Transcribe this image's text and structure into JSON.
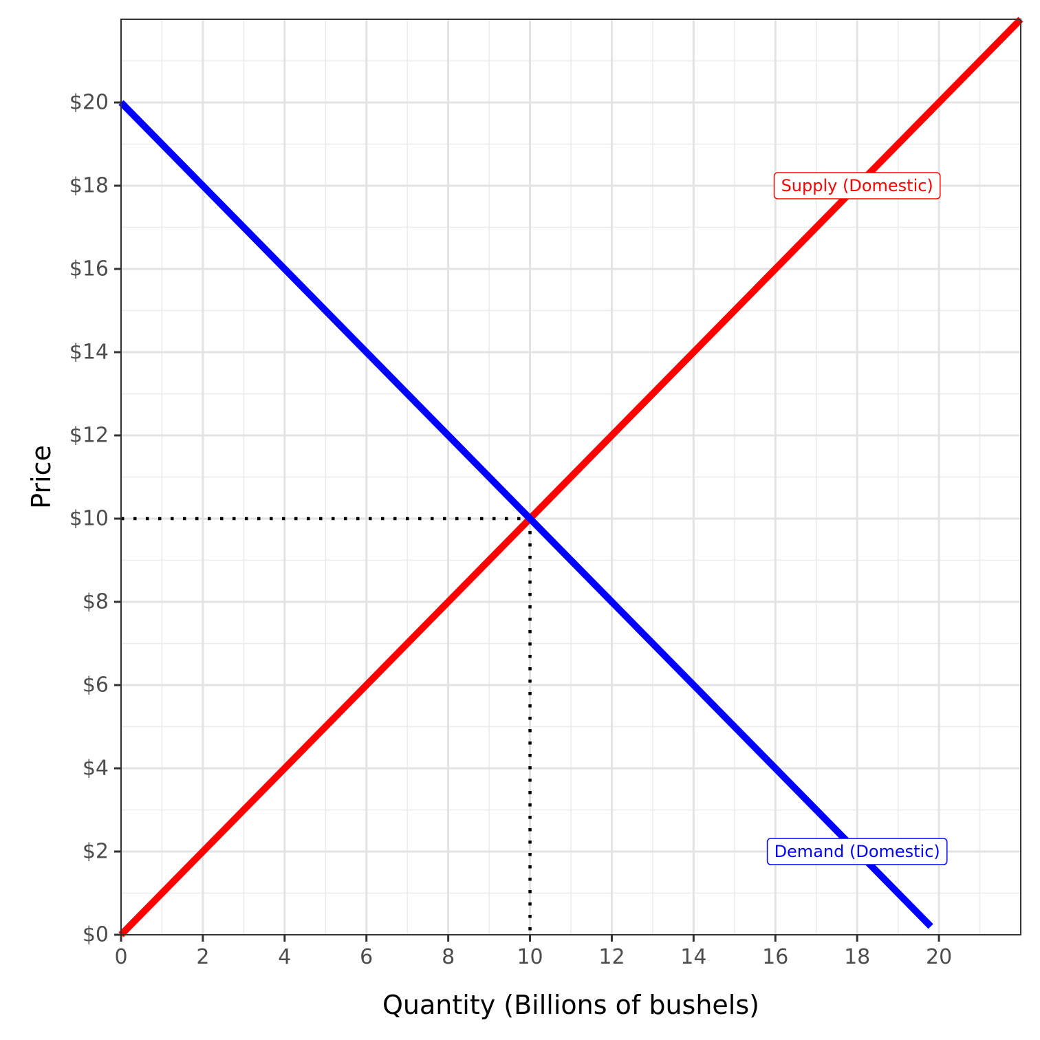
{
  "chart_data": {
    "type": "line",
    "xlabel": "Quantity (Billions of bushels)",
    "ylabel": "Price",
    "xlim": [
      0,
      22
    ],
    "ylim": [
      0,
      22
    ],
    "x_ticks": [
      "0",
      "2",
      "4",
      "6",
      "8",
      "10",
      "12",
      "14",
      "16",
      "18",
      "20"
    ],
    "y_ticks": [
      "$0",
      "$2",
      "$4",
      "$6",
      "$8",
      "$10",
      "$12",
      "$14",
      "$16",
      "$18",
      "$20"
    ],
    "grid": true,
    "series": [
      {
        "name": "Supply (Domestic)",
        "color": "#ff0000",
        "points": [
          [
            0,
            0
          ],
          [
            22,
            22
          ]
        ],
        "label_at": [
          18,
          18
        ]
      },
      {
        "name": "Demand (Domestic)",
        "color": "#0000ff",
        "points": [
          [
            0,
            20
          ],
          [
            19.8,
            0.2
          ]
        ],
        "label_at": [
          18,
          2
        ]
      }
    ],
    "equilibrium": {
      "x": 10,
      "y": 10
    }
  }
}
